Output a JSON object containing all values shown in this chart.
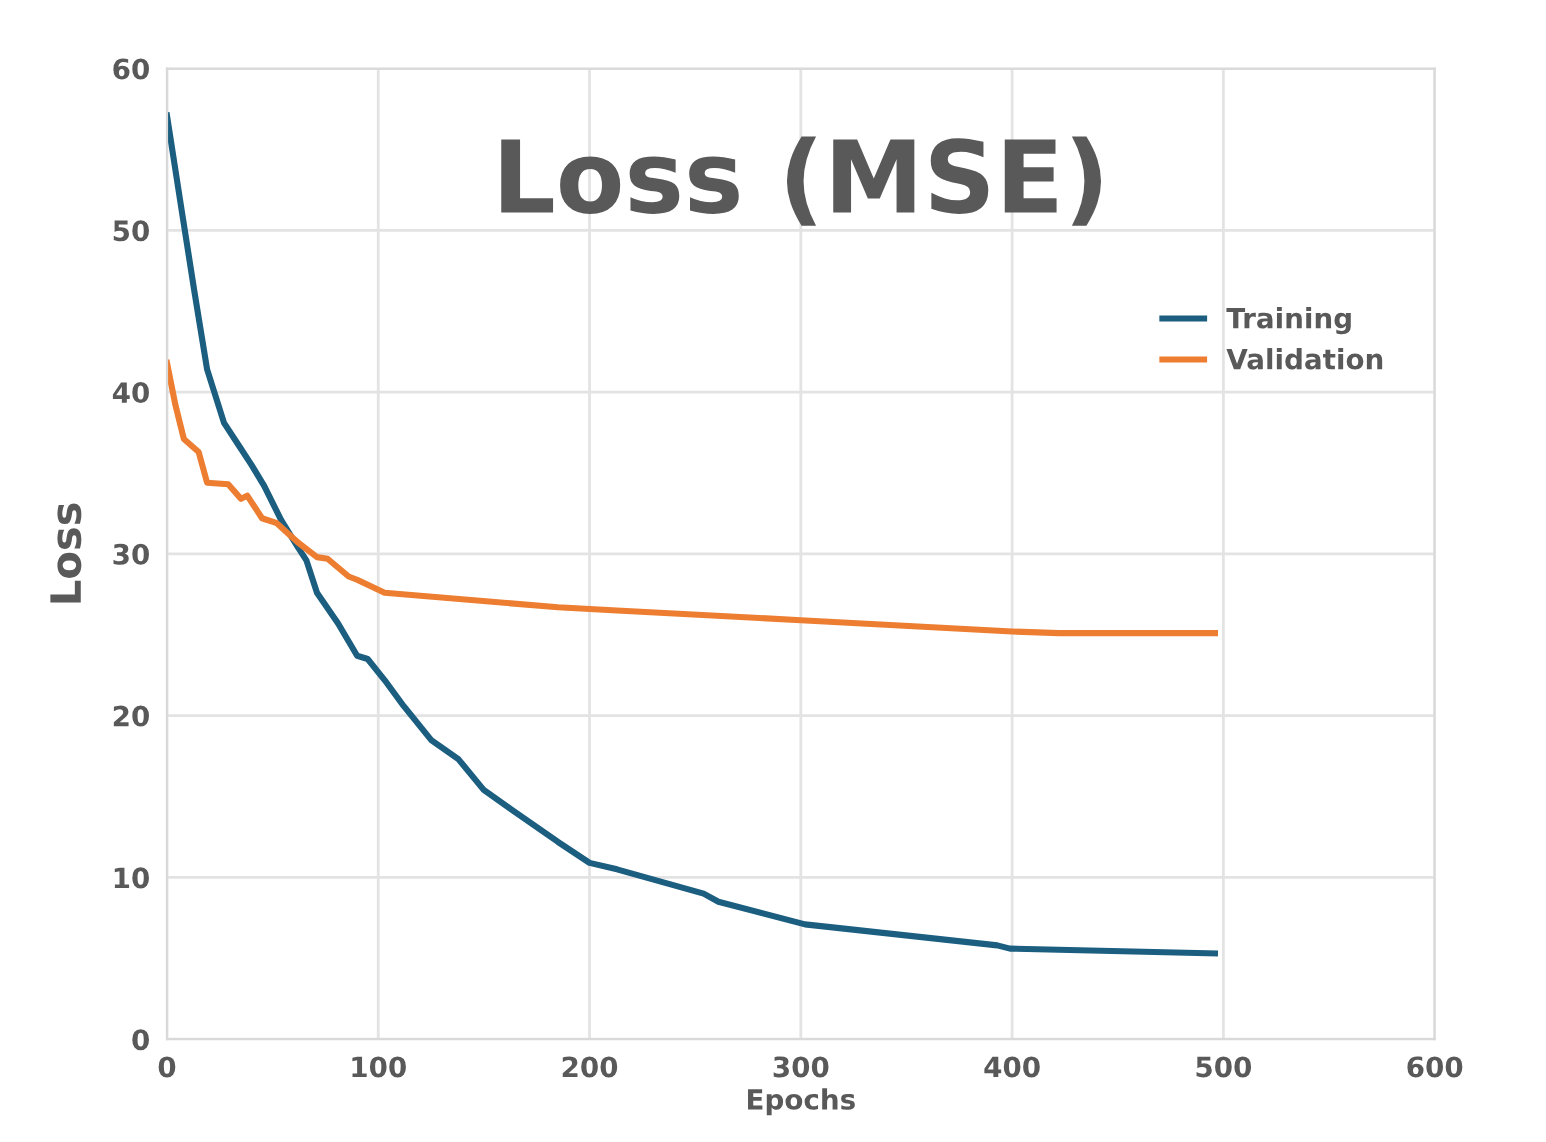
{
  "chart_data": {
    "type": "line",
    "title": "Loss (MSE)",
    "xlabel": "Epochs",
    "ylabel": "Loss",
    "xlim": [
      0,
      600
    ],
    "xticks": [
      0,
      100,
      200,
      300,
      400,
      500,
      600
    ],
    "ylim": [
      0,
      60
    ],
    "yticks": [
      0,
      10,
      20,
      30,
      40,
      50,
      60
    ],
    "grid": true,
    "legend": "top right",
    "marker": "none",
    "line_style": "solid",
    "series": [
      {
        "name": "Training",
        "color": "#1b5e80",
        "x": [
          0,
          7,
          13,
          19,
          27,
          33,
          40,
          46,
          54,
          62,
          66,
          71,
          81,
          90,
          95,
          103,
          112,
          125,
          138,
          150,
          163,
          185,
          200,
          213,
          254,
          261,
          302,
          393,
          399,
          496
        ],
        "values": [
          57.1,
          51.2,
          46.2,
          41.4,
          38.1,
          36.9,
          35.5,
          34.2,
          32.1,
          30.4,
          29.6,
          27.6,
          25.7,
          23.7,
          23.5,
          22.2,
          20.6,
          18.5,
          17.3,
          15.4,
          14.2,
          12.2,
          10.9,
          10.5,
          9.0,
          8.5,
          7.1,
          5.8,
          5.6,
          5.3
        ]
      },
      {
        "name": "Validation",
        "color": "#ed7d31",
        "x": [
          0,
          4,
          8,
          15,
          19,
          29,
          35,
          38,
          45,
          52,
          62,
          71,
          76,
          86,
          90,
          103,
          185,
          213,
          300,
          400,
          422,
          496
        ],
        "values": [
          41.8,
          39.2,
          37.1,
          36.3,
          34.4,
          34.3,
          33.4,
          33.6,
          32.2,
          31.9,
          30.7,
          29.8,
          29.7,
          28.6,
          28.4,
          27.6,
          26.7,
          26.5,
          25.9,
          25.2,
          25.1,
          25.1
        ]
      }
    ]
  }
}
